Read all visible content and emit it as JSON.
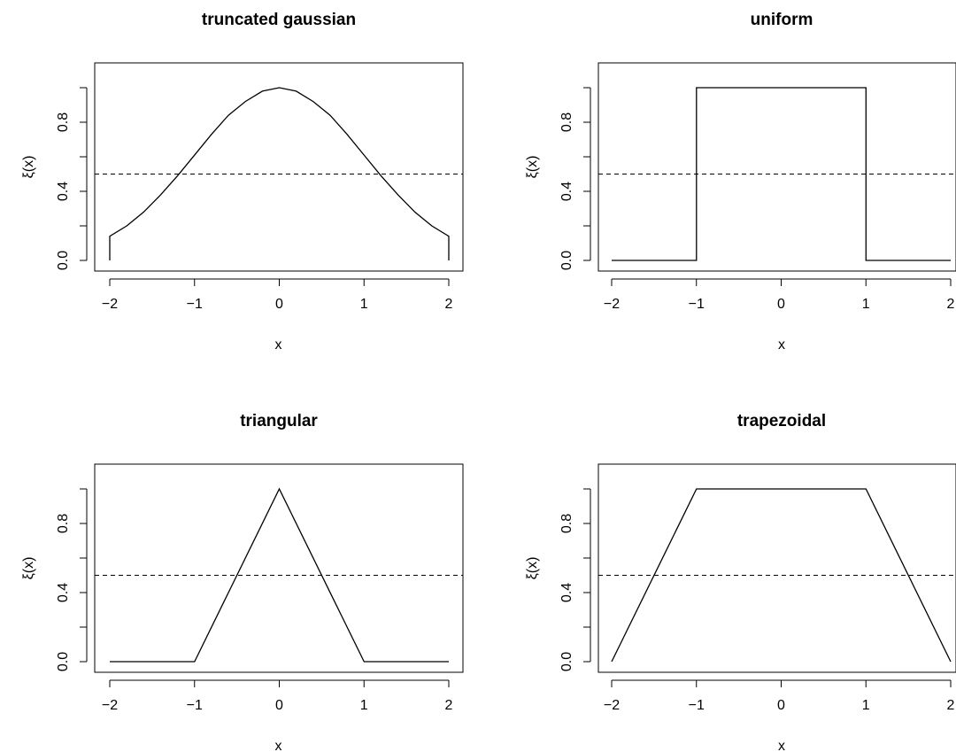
{
  "chart_data": [
    {
      "type": "line",
      "title": "truncated gaussian",
      "xlabel": "x",
      "ylabel": "ξ(x)",
      "xlim": [
        -2,
        2
      ],
      "ylim": [
        0,
        1
      ],
      "x_ticks": [
        "−2",
        "−1",
        "0",
        "1",
        "2"
      ],
      "y_ticks": [
        "0.0",
        "0.4",
        "0.8"
      ],
      "reference_line": {
        "y": 0.5,
        "style": "dashed"
      },
      "series": [
        {
          "x": [
            -2,
            -2,
            -1.8,
            -1.6,
            -1.4,
            -1.2,
            -1,
            -0.8,
            -0.6,
            -0.4,
            -0.2,
            0,
            0.2,
            0.4,
            0.6,
            0.8,
            1,
            1.2,
            1.4,
            1.6,
            1.8,
            2,
            2
          ],
          "y": [
            0,
            0.14,
            0.2,
            0.28,
            0.38,
            0.49,
            0.61,
            0.73,
            0.84,
            0.92,
            0.98,
            1.0,
            0.98,
            0.92,
            0.84,
            0.73,
            0.61,
            0.49,
            0.38,
            0.28,
            0.2,
            0.14,
            0
          ]
        }
      ]
    },
    {
      "type": "line",
      "title": "uniform",
      "xlabel": "x",
      "ylabel": "ξ(x)",
      "xlim": [
        -2,
        2
      ],
      "ylim": [
        0,
        1
      ],
      "x_ticks": [
        "−2",
        "−1",
        "0",
        "1",
        "2"
      ],
      "y_ticks": [
        "0.0",
        "0.4",
        "0.8"
      ],
      "reference_line": {
        "y": 0.5,
        "style": "dashed"
      },
      "series": [
        {
          "x": [
            -2,
            -1,
            -1,
            1,
            1,
            2
          ],
          "y": [
            0,
            0,
            1,
            1,
            0,
            0
          ]
        }
      ]
    },
    {
      "type": "line",
      "title": "triangular",
      "xlabel": "x",
      "ylabel": "ξ(x)",
      "xlim": [
        -2,
        2
      ],
      "ylim": [
        0,
        1
      ],
      "x_ticks": [
        "−2",
        "−1",
        "0",
        "1",
        "2"
      ],
      "y_ticks": [
        "0.0",
        "0.4",
        "0.8"
      ],
      "reference_line": {
        "y": 0.5,
        "style": "dashed"
      },
      "series": [
        {
          "x": [
            -2,
            -1,
            0,
            1,
            2
          ],
          "y": [
            0,
            0,
            1,
            0,
            0
          ]
        }
      ]
    },
    {
      "type": "line",
      "title": "trapezoidal",
      "xlabel": "x",
      "ylabel": "ξ(x)",
      "xlim": [
        -2,
        2
      ],
      "ylim": [
        0,
        1
      ],
      "x_ticks": [
        "−2",
        "−1",
        "0",
        "1",
        "2"
      ],
      "y_ticks": [
        "0.0",
        "0.4",
        "0.8"
      ],
      "reference_line": {
        "y": 0.5,
        "style": "dashed"
      },
      "series": [
        {
          "x": [
            -2,
            -1,
            1,
            2
          ],
          "y": [
            0,
            1,
            1,
            0
          ]
        }
      ]
    }
  ]
}
